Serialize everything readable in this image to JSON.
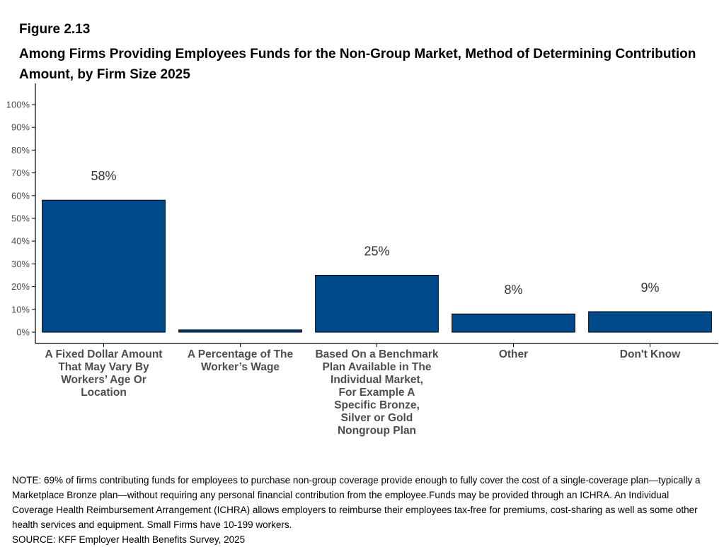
{
  "figure_label": "Figure 2.13",
  "chart_data": {
    "type": "bar",
    "title": "Among Firms Providing Employees Funds for the Non-Group Market, Method of Determining Contribution Amount, by Firm Size 2025",
    "categories": [
      "A Fixed Dollar Amount That May Vary By Workers’ Age Or Location",
      "A Percentage of The Worker’s Wage",
      "Based On a Benchmark Plan Available in The Individual Market, For Example A Specific Bronze, Silver or Gold Nongroup Plan",
      "Other",
      "Don't Know"
    ],
    "category_lines": [
      [
        "A Fixed Dollar Amount",
        "That May Vary By",
        "Workers’ Age Or",
        "Location"
      ],
      [
        "A Percentage of The",
        "Worker’s Wage"
      ],
      [
        "Based On a Benchmark",
        "Plan Available in The",
        "Individual Market,",
        "For Example A",
        "Specific Bronze,",
        "Silver or Gold",
        "Nongroup Plan"
      ],
      [
        "Other"
      ],
      [
        "Don't Know"
      ]
    ],
    "values": [
      58,
      1,
      25,
      8,
      9
    ],
    "data_labels": [
      "58%",
      "",
      "25%",
      "8%",
      "9%"
    ],
    "y_ticks": [
      "0%",
      "10%",
      "20%",
      "30%",
      "40%",
      "50%",
      "60%",
      "70%",
      "80%",
      "90%",
      "100%"
    ],
    "ylim": [
      0,
      100
    ],
    "xlabel": "",
    "ylabel": "",
    "bar_color": "#00498a",
    "grid": false
  },
  "note": "NOTE: 69% of firms contributing funds for employees to purchase non-group coverage provide enough to fully cover the cost of a single-coverage plan—typically a Marketplace Bronze plan—without requiring any personal financial contribution from the employee.Funds may be provided through an ICHRA. An Individual Coverage Health Reimbursement Arrangement (ICHRA) allows employers to reimburse their employees tax-free for premiums, cost-sharing as well as some other health services and equipment. Small Firms have 10-199 workers.",
  "source": "SOURCE: KFF Employer Health Benefits Survey, 2025"
}
